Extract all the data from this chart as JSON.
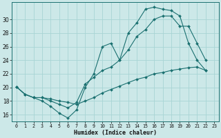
{
  "xlabel": "Humidex (Indice chaleur)",
  "bg_color": "#cce8e8",
  "line_color": "#1a7070",
  "grid_color": "#a8d4d4",
  "xlim": [
    -0.5,
    23.5
  ],
  "ylim": [
    15.0,
    32.5
  ],
  "xticks": [
    0,
    1,
    2,
    3,
    4,
    5,
    6,
    7,
    8,
    9,
    10,
    11,
    12,
    13,
    14,
    15,
    16,
    17,
    18,
    19,
    20,
    21,
    22,
    23
  ],
  "yticks": [
    16,
    18,
    20,
    22,
    24,
    26,
    28,
    30
  ],
  "line1_x": [
    0,
    1,
    2,
    3,
    4,
    5,
    6,
    7,
    8,
    9,
    10,
    11,
    12,
    13,
    14,
    15,
    16,
    17,
    18,
    19,
    20,
    21,
    22
  ],
  "line1_y": [
    20.1,
    19.0,
    18.5,
    18.0,
    17.2,
    16.2,
    15.5,
    16.7,
    20.0,
    22.0,
    26.0,
    26.5,
    24.0,
    28.0,
    29.5,
    31.5,
    31.8,
    31.5,
    31.3,
    30.5,
    26.5,
    24.0,
    22.5
  ],
  "line2_x": [
    0,
    1,
    2,
    3,
    4,
    5,
    6,
    7,
    8,
    9,
    10,
    11,
    12,
    13,
    14,
    15,
    16,
    17,
    18,
    19,
    20,
    21,
    22
  ],
  "line2_y": [
    20.1,
    19.0,
    18.5,
    18.5,
    18.0,
    17.5,
    17.0,
    17.8,
    20.5,
    21.5,
    22.5,
    23.0,
    24.0,
    25.5,
    27.5,
    28.5,
    30.0,
    30.5,
    30.5,
    29.0,
    29.0,
    26.5,
    24.0
  ],
  "line3_x": [
    0,
    1,
    2,
    3,
    4,
    5,
    6,
    7,
    8,
    9,
    10,
    11,
    12,
    13,
    14,
    15,
    16,
    17,
    18,
    19,
    20,
    21,
    22
  ],
  "line3_y": [
    20.1,
    19.0,
    18.5,
    18.5,
    18.3,
    18.0,
    17.8,
    17.5,
    18.0,
    18.5,
    19.2,
    19.7,
    20.2,
    20.7,
    21.2,
    21.5,
    22.0,
    22.2,
    22.5,
    22.7,
    22.9,
    23.0,
    22.5
  ]
}
